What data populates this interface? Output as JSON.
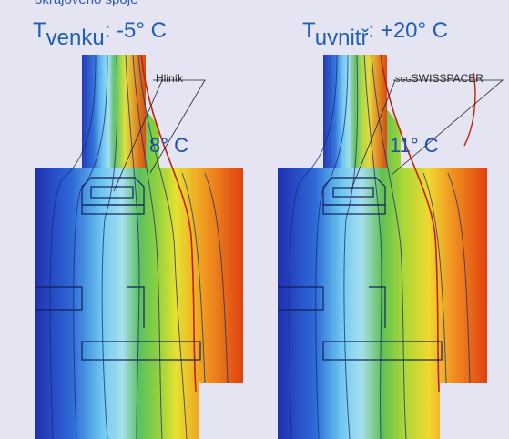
{
  "caption_partial": "okrajového spoje",
  "left_panel": {
    "t_symbol": "T",
    "t_subscript": "venku",
    "t_value": ": -5° C",
    "callout": "Hliník",
    "inner_temp": "8° C"
  },
  "right_panel": {
    "t_symbol": "T",
    "t_subscript": "uvnitř",
    "t_value": ": +20° C",
    "callout_prefix": "SGG",
    "callout_main": "SWISSPACER",
    "inner_temp": "11° C"
  },
  "colors": {
    "background": "#e4e4f3",
    "cold": "#1f2fb8",
    "cool": "#5fc0ec",
    "mid": "#4fc040",
    "warm": "#f0e030",
    "hot": "#e04818",
    "label_blue": "#1f5fb4"
  }
}
